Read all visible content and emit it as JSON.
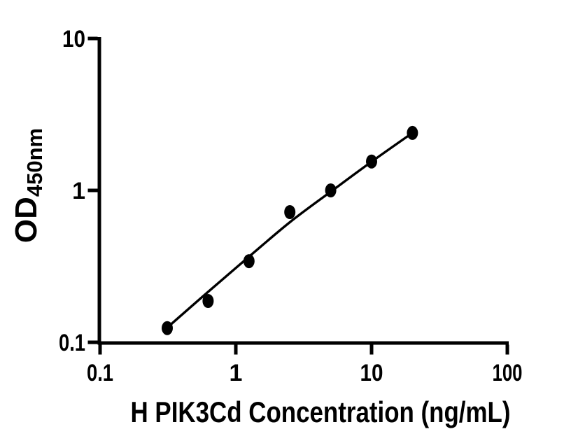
{
  "figure": {
    "background_color": "#ffffff",
    "ink_color": "#000000"
  },
  "chart_data": {
    "type": "scatter",
    "title": "",
    "xlabel": "H PIK3Cd Concentration (ng/mL)",
    "ylabel": "OD",
    "ylabel_subscript": "450nm",
    "x_scale": "log10",
    "y_scale": "log10",
    "xlim": [
      0.1,
      100
    ],
    "ylim": [
      0.1,
      10
    ],
    "grid": false,
    "legend": "none",
    "x_ticks": [
      {
        "value": 0.1,
        "label": "0.1"
      },
      {
        "value": 1,
        "label": "1"
      },
      {
        "value": 10,
        "label": "10"
      },
      {
        "value": 100,
        "label": "100"
      }
    ],
    "y_ticks": [
      {
        "value": 10,
        "label": "10"
      },
      {
        "value": 1,
        "label": "1"
      },
      {
        "value": 0.1,
        "label": "0.1"
      }
    ],
    "series": [
      {
        "name": "standard-curve-points",
        "marker": {
          "shape": "ellipse",
          "fill": "#000000"
        },
        "points": [
          {
            "x": 0.3125,
            "y": 0.124
          },
          {
            "x": 0.625,
            "y": 0.187
          },
          {
            "x": 1.25,
            "y": 0.342
          },
          {
            "x": 2.5,
            "y": 0.72
          },
          {
            "x": 5,
            "y": 1.0
          },
          {
            "x": 10,
            "y": 1.55
          },
          {
            "x": 20,
            "y": 2.39
          }
        ]
      }
    ],
    "fit_curve": {
      "name": "fitted-standard-curve",
      "color": "#000000",
      "points": [
        {
          "x": 0.3125,
          "y": 0.125
        },
        {
          "x": 0.625,
          "y": 0.215
        },
        {
          "x": 1.25,
          "y": 0.366
        },
        {
          "x": 2.5,
          "y": 0.617
        },
        {
          "x": 5,
          "y": 0.98
        },
        {
          "x": 10,
          "y": 1.545
        },
        {
          "x": 20,
          "y": 2.39
        }
      ]
    }
  }
}
